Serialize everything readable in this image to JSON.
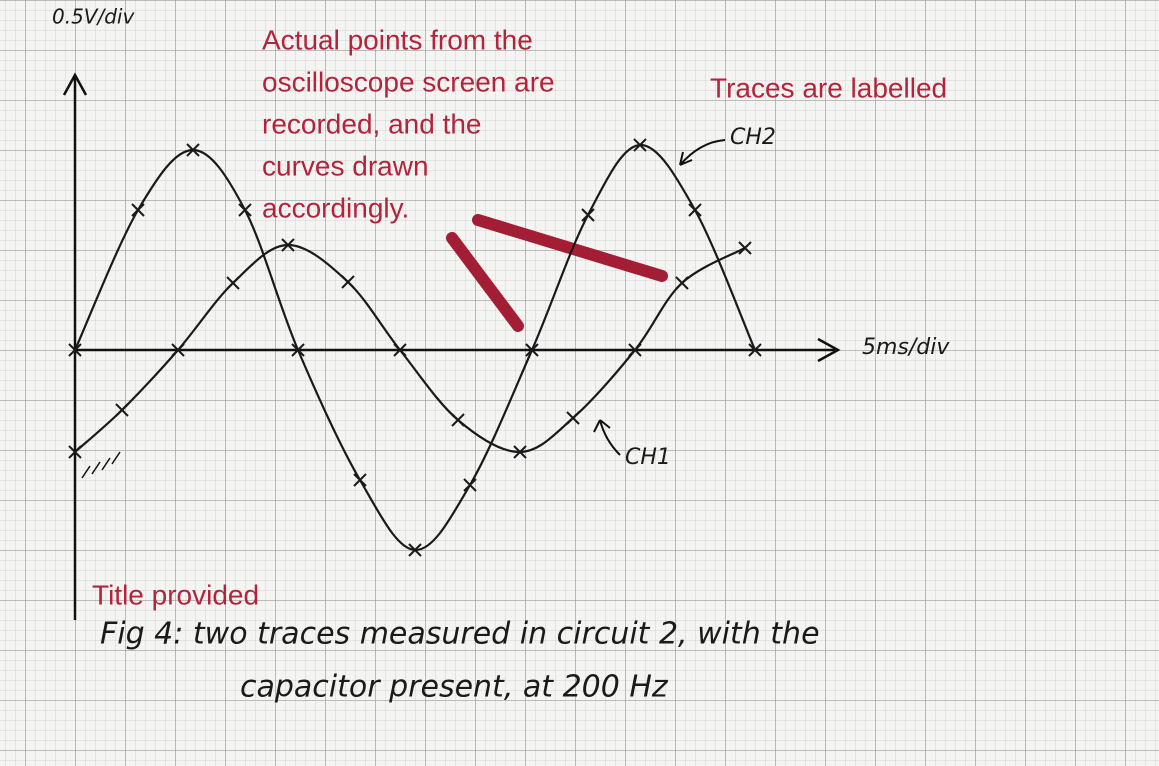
{
  "chart_data": {
    "type": "line",
    "title": [
      "Fig 4: two traces measured in circuit 2, with the",
      "capacitor present, at 200 Hz"
    ],
    "x_label": "5ms/div",
    "y_label": "0.5V/div",
    "annotations": [
      [
        "Actual points from the",
        "oscilloscope screen are",
        "recorded, and the",
        "curves drawn",
        "accordingly."
      ],
      [
        "Traces are labelled"
      ],
      [
        "Title provided"
      ]
    ],
    "xlim": [
      0,
      76
    ],
    "ylim": [
      -2.7,
      2.75
    ],
    "series": [
      {
        "name": "CH2",
        "color": "#1a1a1a",
        "x": [
          0,
          6.3,
          11.8,
          17.0,
          22.3,
          28.5,
          34.0,
          39.5,
          45.7,
          51.3,
          56.5,
          62.0,
          68.0
        ],
        "values": [
          0,
          1.4,
          2.0,
          1.4,
          0,
          -1.3,
          -2.0,
          -1.35,
          0,
          1.35,
          2.05,
          1.4,
          0
        ]
      },
      {
        "name": "CH1",
        "color": "#1a1a1a",
        "x": [
          0,
          4.7,
          10.3,
          15.8,
          21.3,
          27.3,
          32.5,
          38.3,
          44.5,
          49.8,
          56.0,
          60.7,
          67.0
        ],
        "values": [
          -1.02,
          -0.6,
          0,
          0.67,
          1.05,
          0.68,
          0,
          -0.7,
          -1.02,
          -0.68,
          0,
          0.67,
          1.02
        ]
      }
    ]
  }
}
